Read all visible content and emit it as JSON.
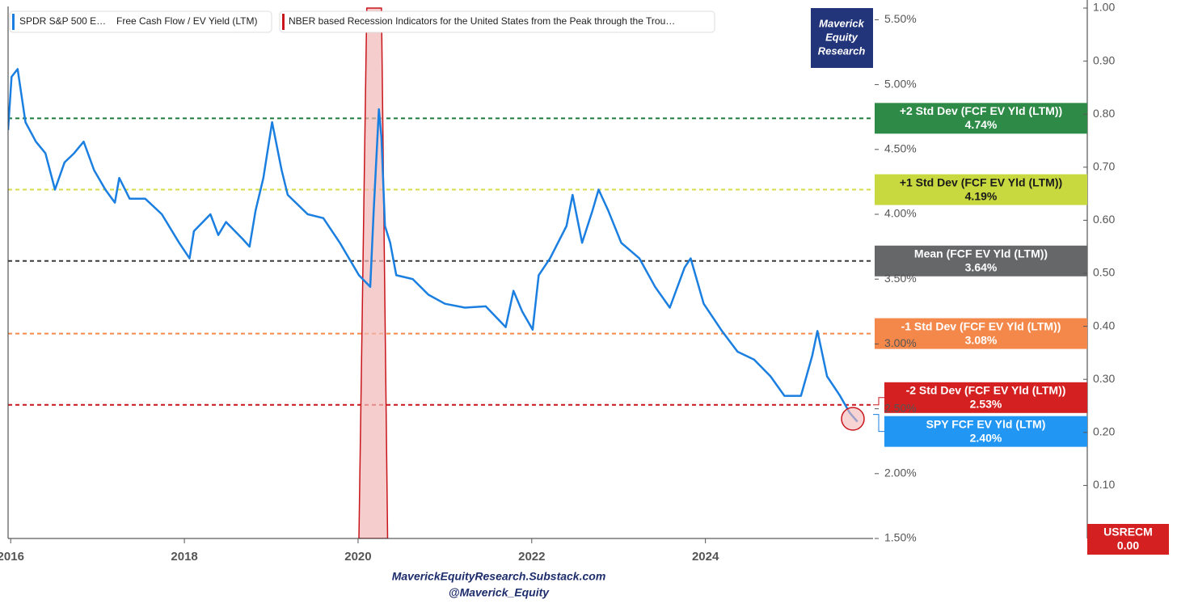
{
  "chart_data": {
    "type": "line",
    "legend": {
      "series_metric": "Free Cash Flow / EV Yield (LTM)"
    },
    "watermark": [
      "Maverick",
      "Equity",
      "Research"
    ],
    "footer": [
      "MaverickEquityResearch.Substack.com",
      "@Maverick_Equity"
    ],
    "xlim": [
      2015.97,
      2025.93
    ],
    "xticks": [
      2016,
      2018,
      2020,
      2022,
      2024
    ],
    "ylim": [
      1.5,
      5.59
    ],
    "yticks": [
      {
        "value": 1.5,
        "label": "1.50%"
      },
      {
        "value": 2.0,
        "label": "2.00%"
      },
      {
        "value": 2.5,
        "label": "2.50%"
      },
      {
        "value": 3.0,
        "label": "3.00%"
      },
      {
        "value": 3.5,
        "label": "3.50%"
      },
      {
        "value": 4.0,
        "label": "4.00%"
      },
      {
        "value": 4.5,
        "label": "4.50%"
      },
      {
        "value": 5.0,
        "label": "5.00%"
      },
      {
        "value": 5.5,
        "label": "5.50%"
      }
    ],
    "y2lim": [
      0,
      1
    ],
    "y2ticks": [
      {
        "value": 0.1,
        "label": "0.10"
      },
      {
        "value": 0.2,
        "label": "0.20"
      },
      {
        "value": 0.3,
        "label": "0.30"
      },
      {
        "value": 0.4,
        "label": "0.40"
      },
      {
        "value": 0.5,
        "label": "0.50"
      },
      {
        "value": 0.6,
        "label": "0.60"
      },
      {
        "value": 0.7,
        "label": "0.70"
      },
      {
        "value": 0.8,
        "label": "0.80"
      },
      {
        "value": 0.9,
        "label": "0.90"
      },
      {
        "value": 1,
        "label": "1.00"
      }
    ],
    "series": [
      {
        "name": "NBER based Recession Indicators for the United States from the Peak through the Trou…",
        "color": "#c8151b",
        "axis": "y2",
        "area": true,
        "x": [
          2020.01,
          2020.1,
          2020.27,
          2020.34
        ],
        "values": [
          0,
          1,
          1,
          0
        ],
        "end_label": {
          "name": "USRECM",
          "value": 0,
          "value_label": "0.00"
        }
      },
      {
        "name": "SPDR S&P 500 E…",
        "color": "#1a7fe0",
        "x": [
          2015.97,
          2016.01,
          2016.08,
          2016.17,
          2016.29,
          2016.4,
          2016.51,
          2016.62,
          2016.73,
          2016.84,
          2016.96,
          2017.09,
          2017.2,
          2017.25,
          2017.37,
          2017.55,
          2017.74,
          2017.94,
          2018.06,
          2018.11,
          2018.3,
          2018.39,
          2018.48,
          2018.67,
          2018.75,
          2018.82,
          2018.91,
          2019.01,
          2019.12,
          2019.19,
          2019.42,
          2019.6,
          2019.79,
          2020.01,
          2020.14,
          2020.18,
          2020.24,
          2020.27,
          2020.31,
          2020.37,
          2020.44,
          2020.63,
          2020.81,
          2021.0,
          2021.23,
          2021.47,
          2021.7,
          2021.79,
          2021.89,
          2022.01,
          2022.08,
          2022.21,
          2022.4,
          2022.47,
          2022.58,
          2022.7,
          2022.77,
          2022.88,
          2023.03,
          2023.24,
          2023.42,
          2023.59,
          2023.76,
          2023.83,
          2023.98,
          2024.19,
          2024.37,
          2024.56,
          2024.75,
          2024.91,
          2025.1,
          2025.23,
          2025.29,
          2025.4,
          2025.55,
          2025.66,
          2025.75
        ],
        "values": [
          4.65,
          5.06,
          5.12,
          4.71,
          4.56,
          4.47,
          4.19,
          4.4,
          4.47,
          4.56,
          4.34,
          4.19,
          4.09,
          4.28,
          4.12,
          4.12,
          4.0,
          3.78,
          3.66,
          3.87,
          4.0,
          3.84,
          3.94,
          3.81,
          3.75,
          4.03,
          4.28,
          4.71,
          4.34,
          4.15,
          4.0,
          3.97,
          3.78,
          3.53,
          3.44,
          4.03,
          4.81,
          4.59,
          3.91,
          3.78,
          3.53,
          3.5,
          3.38,
          3.31,
          3.28,
          3.29,
          3.13,
          3.41,
          3.25,
          3.11,
          3.53,
          3.66,
          3.91,
          4.15,
          3.78,
          4.03,
          4.19,
          4.03,
          3.78,
          3.66,
          3.44,
          3.28,
          3.59,
          3.66,
          3.31,
          3.1,
          2.94,
          2.88,
          2.75,
          2.6,
          2.6,
          2.91,
          3.1,
          2.75,
          2.6,
          2.47,
          2.4
        ],
        "end_label": {
          "name": "SPY FCF EV Yld (LTM)",
          "value": 2.4,
          "value_label": "2.40%"
        }
      }
    ],
    "reference_lines": [
      {
        "name": "+2 Std Dev (FCF EV Yld (LTM))",
        "value": 4.74,
        "value_label": "4.74%",
        "color": "#1e7b3e",
        "box_color": "#2e8a47",
        "text_color": "#ffffff"
      },
      {
        "name": "+1 Std Dev (FCF EV Yld (LTM))",
        "value": 4.19,
        "value_label": "4.19%",
        "color": "#d6dc4a",
        "box_color": "#c7d93f",
        "text_color": "#1a1a1a"
      },
      {
        "name": "Mean (FCF EV Yld (LTM))",
        "value": 3.64,
        "value_label": "3.64%",
        "color": "#3a3a3a",
        "box_color": "#666769",
        "text_color": "#ffffff"
      },
      {
        "name": "-1 Std Dev (FCF EV Yld (LTM))",
        "value": 3.08,
        "value_label": "3.08%",
        "color": "#f58a4b",
        "box_color": "#f4884a",
        "text_color": "#ffffff"
      },
      {
        "name": "-2 Std Dev (FCF EV Yld (LTM))",
        "value": 2.53,
        "value_label": "2.53%",
        "color": "#c8151b",
        "box_color": "#d42020",
        "text_color": "#ffffff"
      }
    ]
  }
}
